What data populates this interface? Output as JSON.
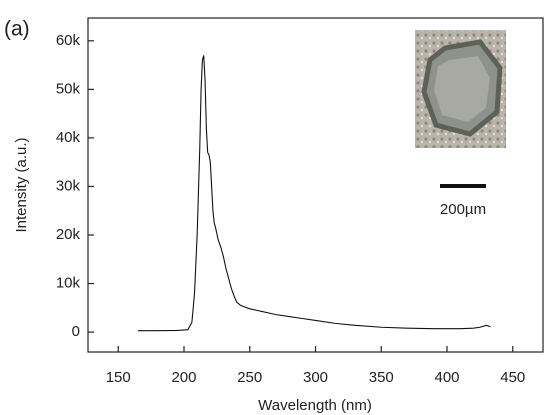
{
  "chart_data": {
    "type": "line",
    "panel_label": "(a)",
    "xlabel": "Wavelength (nm)",
    "ylabel": "Intensity (a.u.)",
    "inset_scale_label": "200µm",
    "color": "#111111",
    "x": [
      165,
      180,
      195,
      203,
      206,
      208,
      210,
      212,
      213,
      214,
      215,
      216,
      217,
      218,
      219,
      220,
      221,
      222,
      223,
      224,
      226,
      228,
      230,
      232,
      234,
      236,
      238,
      240,
      243,
      246,
      250,
      255,
      260,
      270,
      280,
      290,
      300,
      315,
      330,
      350,
      370,
      390,
      410,
      420,
      425,
      430,
      433
    ],
    "values": [
      300,
      300,
      350,
      500,
      2000,
      8000,
      20000,
      38000,
      50000,
      56000,
      57000,
      52000,
      42000,
      37000,
      36500,
      35000,
      30000,
      25000,
      22500,
      21500,
      19000,
      17500,
      15500,
      13000,
      11000,
      9000,
      7500,
      6200,
      5500,
      5200,
      4800,
      4500,
      4200,
      3600,
      3200,
      2800,
      2400,
      1800,
      1400,
      1000,
      800,
      700,
      700,
      800,
      1000,
      1400,
      1100
    ],
    "xlim": [
      127,
      473
    ],
    "ylim": [
      -4100,
      64700
    ],
    "xticks": [
      150,
      200,
      250,
      300,
      350,
      400,
      450
    ],
    "yticks": [
      0,
      {
        "value": 10000,
        "label": "10k"
      },
      {
        "value": 20000,
        "label": "20k"
      },
      {
        "value": 30000,
        "label": "30k"
      },
      {
        "value": 40000,
        "label": "40k"
      },
      {
        "value": 50000,
        "label": "50k"
      },
      {
        "value": 60000,
        "label": "60k"
      }
    ]
  }
}
